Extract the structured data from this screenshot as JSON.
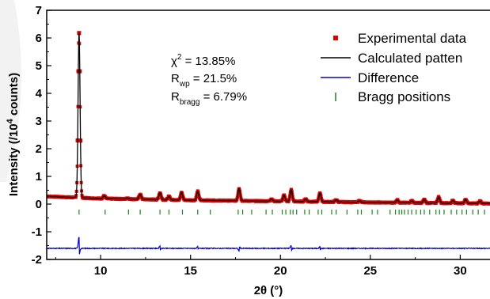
{
  "chart_data": {
    "type": "line",
    "xlabel": "2θ (°)",
    "ylabel_parts": [
      "Intensity (/10",
      "4",
      " counts)"
    ],
    "xlim": [
      7,
      31.7
    ],
    "ylim": [
      -2,
      7
    ],
    "x_ticks": [
      10,
      15,
      20,
      25,
      30
    ],
    "y_ticks": [
      -2,
      -1,
      0,
      1,
      2,
      3,
      4,
      5,
      6,
      7
    ],
    "grid": false,
    "legend_position": "top-right",
    "legend": [
      {
        "label": "Experimental data",
        "color": "#e00000",
        "style": "square"
      },
      {
        "label": "Calculated patten",
        "color": "#000000",
        "style": "line"
      },
      {
        "label": "Difference",
        "color": "#0000d0",
        "style": "line"
      },
      {
        "label": "Bragg positions",
        "color": "#208020",
        "style": "vbar"
      }
    ],
    "annotations": {
      "chi2": {
        "base": "χ",
        "sup": "2",
        "value": " = 13.85%"
      },
      "rwp": {
        "base": "R",
        "sub": "wp",
        "value": " = 21.5%"
      },
      "rbragg": {
        "base": "R",
        "sub": "bragg",
        "value": " = 6.79%"
      }
    },
    "background": {
      "x": [
        7,
        8,
        10,
        15,
        20,
        25,
        31.7
      ],
      "y": [
        0.28,
        0.25,
        0.2,
        0.14,
        0.1,
        0.06,
        0.02
      ]
    },
    "peaks": [
      {
        "x": 8.8,
        "h": 5.95
      },
      {
        "x": 10.2,
        "h": 0.1
      },
      {
        "x": 11.5,
        "h": 0.04
      },
      {
        "x": 12.2,
        "h": 0.18
      },
      {
        "x": 13.3,
        "h": 0.25
      },
      {
        "x": 13.8,
        "h": 0.12
      },
      {
        "x": 14.5,
        "h": 0.28
      },
      {
        "x": 15.4,
        "h": 0.32
      },
      {
        "x": 17.7,
        "h": 0.45
      },
      {
        "x": 19.5,
        "h": 0.08
      },
      {
        "x": 20.2,
        "h": 0.22
      },
      {
        "x": 20.6,
        "h": 0.42
      },
      {
        "x": 21.4,
        "h": 0.1
      },
      {
        "x": 22.2,
        "h": 0.32
      },
      {
        "x": 23.1,
        "h": 0.08
      },
      {
        "x": 24.4,
        "h": 0.06
      },
      {
        "x": 26.5,
        "h": 0.1
      },
      {
        "x": 27.3,
        "h": 0.08
      },
      {
        "x": 28.0,
        "h": 0.12
      },
      {
        "x": 28.8,
        "h": 0.22
      },
      {
        "x": 29.6,
        "h": 0.1
      },
      {
        "x": 30.3,
        "h": 0.14
      },
      {
        "x": 31.1,
        "h": 0.08
      }
    ],
    "difference": {
      "baseline": -1.6,
      "spikes": [
        {
          "x": 8.8,
          "h": 0.42
        },
        {
          "x": 13.3,
          "h": 0.08
        },
        {
          "x": 15.4,
          "h": 0.06
        },
        {
          "x": 17.7,
          "h": -0.1
        },
        {
          "x": 20.6,
          "h": 0.1
        },
        {
          "x": 22.2,
          "h": 0.06
        }
      ]
    },
    "bragg": {
      "y_top": -0.2,
      "y_bottom": -0.38,
      "positions": [
        8.8,
        10.25,
        11.55,
        12.2,
        13.3,
        13.8,
        14.55,
        15.4,
        16.1,
        17.65,
        17.9,
        18.4,
        19.2,
        19.55,
        20.1,
        20.3,
        20.55,
        20.7,
        20.9,
        21.35,
        21.6,
        22.1,
        22.3,
        22.85,
        23.1,
        23.7,
        24.3,
        24.5,
        25.1,
        25.4,
        26.1,
        26.4,
        26.6,
        26.75,
        26.9,
        27.1,
        27.3,
        27.55,
        27.8,
        28.0,
        28.3,
        28.65,
        28.85,
        29.1,
        29.5,
        29.8,
        30.1,
        30.35,
        30.7,
        31.0,
        31.35
      ]
    }
  }
}
